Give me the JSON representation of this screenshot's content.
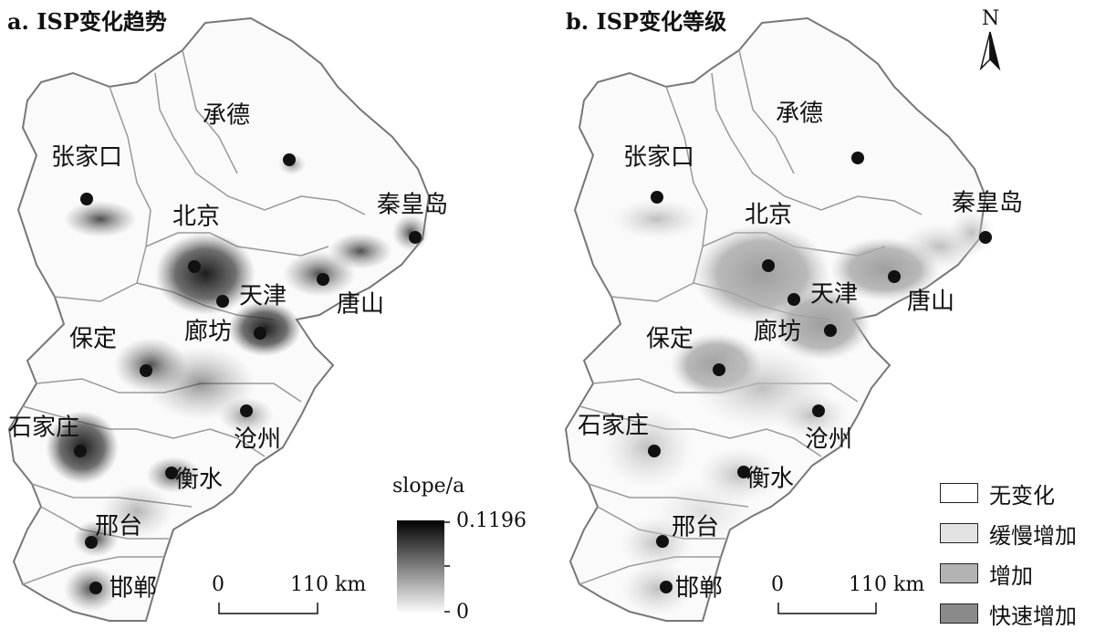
{
  "panel_a": {
    "title": "a. ISP变化趋势",
    "legend": {
      "title": "slope/a",
      "max": "0.1196",
      "min": "0"
    },
    "scale": {
      "zero": "0",
      "distance": "110 km"
    }
  },
  "panel_b": {
    "title": "b. ISP变化等级",
    "north": "N",
    "scale": {
      "zero": "0",
      "distance": "110 km"
    },
    "legend": [
      {
        "label": "无变化",
        "color": "#ffffff"
      },
      {
        "label": "缓慢增加",
        "color": "#e3e3e3"
      },
      {
        "label": "增加",
        "color": "#b3b3b3"
      },
      {
        "label": "快速增加",
        "color": "#8a8a8a"
      }
    ]
  },
  "cities": [
    {
      "name": "承德"
    },
    {
      "name": "张家口"
    },
    {
      "name": "秦皇岛"
    },
    {
      "name": "北京"
    },
    {
      "name": "天津"
    },
    {
      "name": "唐山"
    },
    {
      "name": "保定"
    },
    {
      "name": "廊坊"
    },
    {
      "name": "石家庄"
    },
    {
      "name": "沧州"
    },
    {
      "name": "衡水"
    },
    {
      "name": "邢台"
    },
    {
      "name": "邯郸"
    }
  ]
}
